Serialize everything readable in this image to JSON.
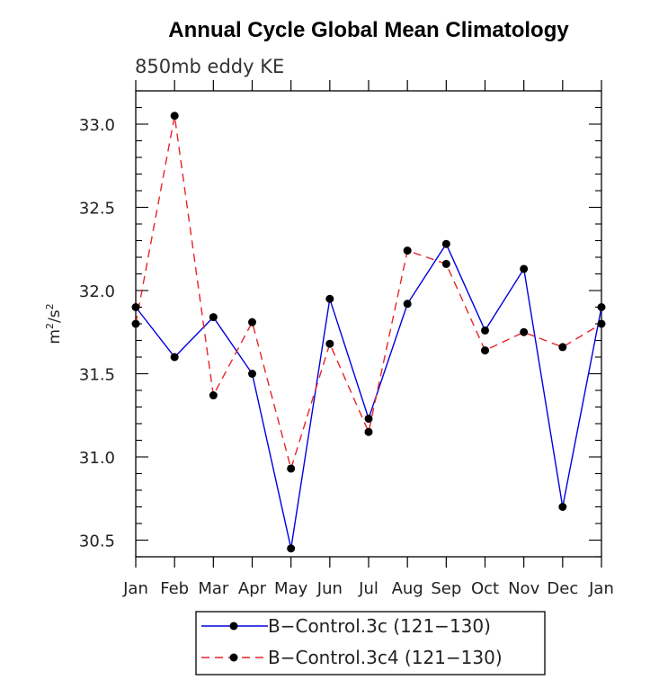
{
  "chart_data": {
    "type": "line",
    "title": "Annual Cycle Global Mean Climatology",
    "subtitle": "850mb eddy KE",
    "ylabel_base": "m",
    "ylabel_sup": "2",
    "ylabel_mid": "/s",
    "ylabel_sup2": "2",
    "categories": [
      "Jan",
      "Feb",
      "Mar",
      "Apr",
      "May",
      "Jun",
      "Jul",
      "Aug",
      "Sep",
      "Oct",
      "Nov",
      "Dec",
      "Jan"
    ],
    "ylim": [
      30.4,
      33.2
    ],
    "yticks": [
      "30.5",
      "31.0",
      "31.5",
      "32.0",
      "32.5",
      "33.0"
    ],
    "series": [
      {
        "name": "B−Control.3c (121−130)",
        "color": "#0000dd",
        "dash": "solid",
        "values": [
          31.9,
          31.6,
          31.84,
          31.5,
          30.45,
          31.95,
          31.23,
          31.92,
          32.28,
          31.76,
          32.13,
          30.7,
          31.9
        ]
      },
      {
        "name": "B−Control.3c4 (121−130)",
        "color": "#e8242a",
        "dash": "dashed",
        "values": [
          31.8,
          33.05,
          31.37,
          31.81,
          30.93,
          31.68,
          31.15,
          32.24,
          32.16,
          31.64,
          31.75,
          31.66,
          31.8
        ]
      }
    ],
    "legend_position": "bottom-center",
    "grid": false
  }
}
